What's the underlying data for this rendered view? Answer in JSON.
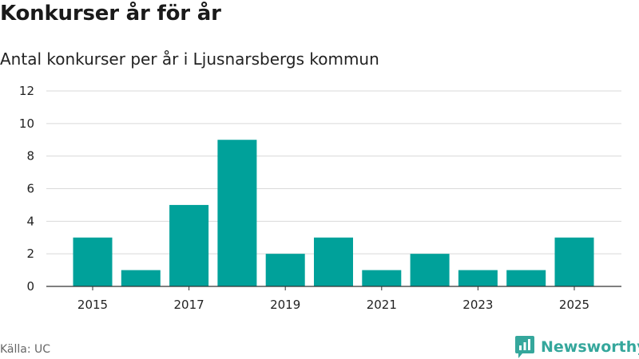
{
  "header": {
    "title": "Konkurser år för år",
    "subtitle": "Antal konkurser per år i Ljusnarsbergs kommun"
  },
  "footer": {
    "source": "Källa: UC",
    "brand": "Newsworthy",
    "brand_icon": "newsworthy-logo-icon"
  },
  "colors": {
    "bar": "#00a19a",
    "grid": "#d9d9d9",
    "axis": "#333333",
    "brand": "#35a79c"
  },
  "chart_data": {
    "type": "bar",
    "title": "Konkurser år för år",
    "subtitle": "Antal konkurser per år i Ljusnarsbergs kommun",
    "xlabel": "",
    "ylabel": "",
    "categories": [
      2015,
      2016,
      2017,
      2018,
      2019,
      2020,
      2021,
      2022,
      2023,
      2024,
      2025
    ],
    "values": [
      3,
      1,
      5,
      9,
      2,
      3,
      1,
      2,
      1,
      1,
      3
    ],
    "x_tick_labels": [
      "2015",
      "2017",
      "2019",
      "2021",
      "2023",
      "2025"
    ],
    "y_tick_labels": [
      "0",
      "2",
      "4",
      "6",
      "8",
      "10",
      "12"
    ],
    "y_ticks": [
      0,
      2,
      4,
      6,
      8,
      10,
      12
    ],
    "ylim": [
      0,
      12
    ],
    "grid": true,
    "legend": "none"
  }
}
